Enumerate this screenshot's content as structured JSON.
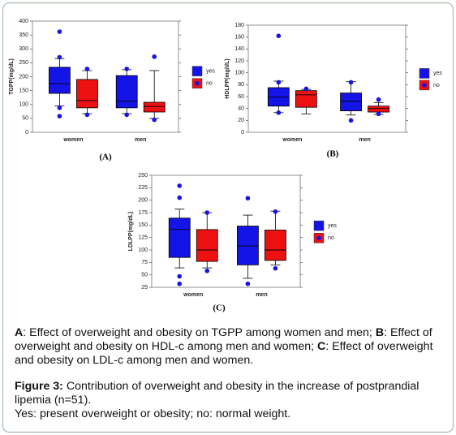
{
  "chart_data": [
    {
      "type": "box",
      "panel_label": "(A)",
      "y_label": "TGPP(mg/dL)",
      "categories": [
        "women",
        "men"
      ],
      "ylim": [
        0,
        400
      ],
      "yticks": [
        0,
        50,
        100,
        150,
        200,
        250,
        300,
        350,
        400
      ],
      "flier_color": "#1414e6",
      "series": [
        {
          "name": "yes",
          "color": "#1414e6",
          "boxes": [
            {
              "whislo": 95,
              "q1": 140,
              "med": 175,
              "q3": 234,
              "whishi": 265,
              "fliers": [
                362,
                270,
                88,
                58
              ]
            },
            {
              "whislo": 67,
              "q1": 88,
              "med": 112,
              "q3": 204,
              "whishi": 225,
              "fliers": [
                228,
                63
              ]
            }
          ]
        },
        {
          "name": "no",
          "color": "#ee1111",
          "boxes": [
            {
              "whislo": 67,
              "q1": 88,
              "med": 114,
              "q3": 190,
              "whishi": 222,
              "fliers": [
                228,
                63
              ]
            },
            {
              "whislo": 50,
              "q1": 73,
              "med": 93,
              "q3": 108,
              "whishi": 222,
              "fliers": [
                272,
                45
              ]
            }
          ]
        }
      ]
    },
    {
      "type": "box",
      "panel_label": "(B)",
      "y_label": "HDLPP(mg/dL)",
      "categories": [
        "women",
        "men"
      ],
      "ylim": [
        0,
        180
      ],
      "yticks": [
        0,
        20,
        40,
        60,
        80,
        100,
        120,
        140,
        160,
        180
      ],
      "flier_color": "#1414e6",
      "series": [
        {
          "name": "yes",
          "color": "#1414e6",
          "boxes": [
            {
              "whislo": 33,
              "q1": 44,
              "med": 59,
              "q3": 75,
              "whishi": 86,
              "fliers": [
                162,
                84,
                33
              ]
            },
            {
              "whislo": 29,
              "q1": 36,
              "med": 52,
              "q3": 66,
              "whishi": 85,
              "fliers": [
                84,
                20
              ]
            }
          ]
        },
        {
          "name": "no",
          "color": "#ee1111",
          "boxes": [
            {
              "whislo": 31,
              "q1": 42,
              "med": 63,
              "q3": 70,
              "whishi": 72,
              "fliers": [
                73
              ]
            },
            {
              "whislo": 30,
              "q1": 34,
              "med": 40,
              "q3": 44,
              "whishi": 50,
              "fliers": [
                55,
                31
              ]
            }
          ]
        }
      ]
    },
    {
      "type": "box",
      "panel_label": "(C)",
      "y_label": "LDLPP(mg/dL)",
      "categories": [
        "women",
        "men"
      ],
      "ylim": [
        25,
        250
      ],
      "yticks": [
        25,
        50,
        75,
        100,
        125,
        150,
        175,
        200,
        225,
        250
      ],
      "flier_color": "#1414e6",
      "series": [
        {
          "name": "yes",
          "color": "#1414e6",
          "boxes": [
            {
              "whislo": 64,
              "q1": 85,
              "med": 141,
              "q3": 164,
              "whishi": 182,
              "fliers": [
                229,
                205,
                47,
                32
              ]
            },
            {
              "whislo": 43,
              "q1": 70,
              "med": 108,
              "q3": 148,
              "whishi": 170,
              "fliers": [
                204,
                32
              ]
            }
          ]
        },
        {
          "name": "no",
          "color": "#ee1111",
          "boxes": [
            {
              "whislo": 64,
              "q1": 77,
              "med": 100,
              "q3": 141,
              "whishi": 175,
              "fliers": [
                175,
                58
              ]
            },
            {
              "whislo": 70,
              "q1": 79,
              "med": 100,
              "q3": 140,
              "whishi": 178,
              "fliers": [
                177,
                63
              ]
            }
          ]
        }
      ]
    }
  ],
  "panel_captions": [
    {
      "letter": "A",
      "text": ": Effect of overweight and obesity on TGPP among women and men;"
    },
    {
      "letter": "B",
      "text": ": Effect of overweight and obesity on HDL-c among men and women;"
    },
    {
      "letter": "C",
      "text": ": Effect of overweight and obesity on LDL-c among men and women."
    }
  ],
  "figure_caption": {
    "label": "Figure 3:",
    "text": "Contribution of overweight and obesity in the increase of postprandial lipemia (n=51).",
    "note": "Yes: present overweight or obesity; no: normal weight."
  }
}
